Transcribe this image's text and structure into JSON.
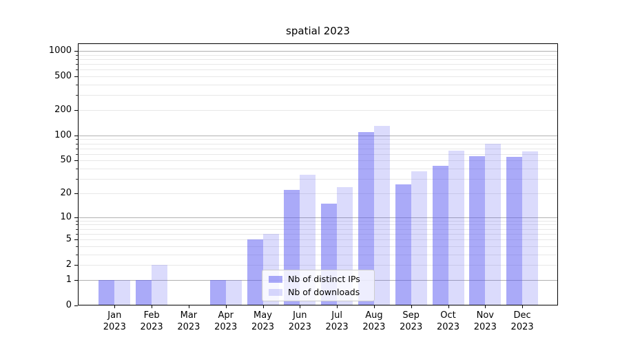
{
  "chart_data": {
    "type": "bar",
    "title": "spatial 2023",
    "categories": [
      "Jan",
      "Feb",
      "Mar",
      "Apr",
      "May",
      "Jun",
      "Jul",
      "Aug",
      "Sep",
      "Oct",
      "Nov",
      "Dec"
    ],
    "year_label": "2023",
    "series": [
      {
        "name": "Nb of distinct IPs",
        "color": "rgba(85,85,242,0.50)",
        "color_hex": "#a9a9f7",
        "values": [
          1,
          1,
          0,
          1,
          5,
          22,
          15,
          109,
          26,
          43,
          57,
          55
        ]
      },
      {
        "name": "Nb of downloads",
        "color": "rgba(85,85,242,0.21)",
        "color_hex": "#dbdbf9",
        "values": [
          1,
          2,
          0,
          1,
          6,
          34,
          24,
          130,
          37,
          66,
          79,
          64
        ]
      }
    ],
    "yscale": "log1p",
    "ylim": [
      0,
      1000
    ],
    "y_ticks": [
      1000,
      500,
      200,
      100,
      50,
      20,
      10,
      5,
      2,
      1,
      0
    ],
    "y_major_gridlines": [
      1,
      10,
      100,
      1000
    ],
    "grid": "on",
    "legend_position": "lower-center-inside",
    "xlabel": "",
    "ylabel": ""
  }
}
